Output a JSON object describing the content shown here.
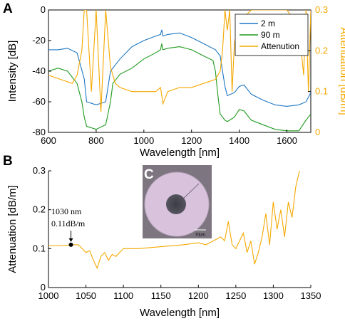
{
  "chart_data": [
    {
      "panel": "A",
      "type": "line",
      "xlabel": "Wavelength [nm]",
      "ylabel": "Intensity [dB]",
      "ylabel_right": "Attenuation [dB/m]",
      "xlim": [
        600,
        1700
      ],
      "ylim": [
        -80,
        0
      ],
      "ylim_right": [
        0,
        0.3
      ],
      "x_ticks": [
        "600",
        "800",
        "1000",
        "1200",
        "1400",
        "1600"
      ],
      "y_ticks": [
        "0",
        "-20",
        "-40",
        "-60",
        "-80"
      ],
      "y_ticks_right": [
        "0",
        "0.1",
        "0.2",
        "0.3"
      ],
      "legend_position": "top-right",
      "series": [
        {
          "name": "2 m",
          "color": "#1f77c4",
          "axis": "left",
          "x": [
            600,
            640,
            680,
            720,
            750,
            760,
            800,
            840,
            860,
            870,
            900,
            950,
            1000,
            1050,
            1070,
            1075,
            1080,
            1100,
            1150,
            1200,
            1250,
            1300,
            1320,
            1330,
            1340,
            1350,
            1380,
            1400,
            1420,
            1450,
            1500,
            1550,
            1600,
            1650,
            1680,
            1700
          ],
          "y": [
            -26,
            -26,
            -25,
            -28,
            -45,
            -60,
            -62,
            -60,
            -40,
            -38,
            -32,
            -24,
            -20,
            -17,
            -16,
            -13,
            -17,
            -16,
            -15,
            -18,
            -22,
            -26,
            -30,
            -40,
            -50,
            -56,
            -54,
            -50,
            -49,
            -55,
            -59,
            -62,
            -63,
            -62,
            -60,
            -54
          ]
        },
        {
          "name": "90 m",
          "color": "#1e9b1e",
          "axis": "left",
          "x": [
            600,
            640,
            680,
            720,
            740,
            750,
            760,
            800,
            840,
            860,
            870,
            900,
            950,
            1000,
            1050,
            1070,
            1075,
            1080,
            1100,
            1150,
            1200,
            1250,
            1290,
            1300,
            1310,
            1320,
            1340,
            1350,
            1380,
            1400,
            1420,
            1450,
            1500,
            1550,
            1600,
            1650,
            1680,
            1700
          ],
          "y": [
            -40,
            -38,
            -40,
            -48,
            -60,
            -70,
            -76,
            -78,
            -75,
            -60,
            -48,
            -42,
            -38,
            -32,
            -28,
            -26,
            -22,
            -26,
            -25,
            -24,
            -26,
            -30,
            -33,
            -40,
            -55,
            -68,
            -72,
            -73,
            -70,
            -65,
            -66,
            -72,
            -75,
            -78,
            -79,
            -79,
            -72,
            -68
          ]
        },
        {
          "name": "Attenution",
          "color": "#f5a800",
          "axis": "right",
          "x": [
            600,
            650,
            700,
            720,
            740,
            750,
            760,
            780,
            800,
            820,
            840,
            860,
            880,
            900,
            950,
            1000,
            1050,
            1070,
            1080,
            1100,
            1150,
            1200,
            1250,
            1300,
            1320,
            1330,
            1340,
            1350,
            1360,
            1370,
            1380,
            1400,
            1450,
            1500,
            1550,
            1600,
            1650,
            1670,
            1680,
            1690,
            1700
          ],
          "y": [
            0.14,
            0.13,
            0.12,
            0.14,
            0.2,
            0.3,
            0.3,
            0.1,
            0.3,
            0.05,
            0.3,
            0.16,
            0.12,
            0.11,
            0.1,
            0.1,
            0.1,
            0.11,
            0.07,
            0.1,
            0.11,
            0.11,
            0.12,
            0.13,
            0.15,
            0.2,
            0.3,
            0.25,
            0.3,
            0.1,
            0.22,
            0.27,
            0.3,
            0.3,
            0.3,
            0.3,
            0.26,
            0.14,
            0.3,
            0.1,
            0.3
          ]
        }
      ]
    },
    {
      "panel": "B",
      "type": "line",
      "xlabel": "Wavelength [nm]",
      "ylabel": "Attenuation [dB/m]",
      "xlim": [
        1000,
        1350
      ],
      "ylim": [
        0,
        0.3
      ],
      "x_ticks": [
        "1000",
        "1050",
        "1100",
        "1150",
        "1200",
        "1250",
        "1300",
        "1350"
      ],
      "y_ticks": [
        "0",
        "0.1",
        "0.2",
        "0.3"
      ],
      "series": [
        {
          "name": "",
          "color": "#f5a800",
          "x": [
            1000,
            1020,
            1030,
            1040,
            1045,
            1050,
            1055,
            1060,
            1065,
            1070,
            1075,
            1080,
            1085,
            1090,
            1100,
            1120,
            1150,
            1180,
            1200,
            1210,
            1220,
            1230,
            1235,
            1240,
            1245,
            1250,
            1255,
            1260,
            1265,
            1270,
            1275,
            1280,
            1285,
            1290,
            1295,
            1300,
            1305,
            1310,
            1315,
            1320,
            1325,
            1330,
            1335
          ],
          "y": [
            0.108,
            0.108,
            0.11,
            0.11,
            0.1,
            0.09,
            0.095,
            0.07,
            0.05,
            0.08,
            0.09,
            0.07,
            0.085,
            0.08,
            0.1,
            0.1,
            0.105,
            0.11,
            0.115,
            0.11,
            0.12,
            0.13,
            0.12,
            0.17,
            0.11,
            0.1,
            0.12,
            0.14,
            0.09,
            0.12,
            0.06,
            0.09,
            0.13,
            0.19,
            0.11,
            0.22,
            0.15,
            0.2,
            0.13,
            0.22,
            0.18,
            0.26,
            0.3
          ]
        }
      ],
      "annotation": {
        "x": 1030,
        "y": 0.11,
        "label_line1": "1030 nm",
        "label_line2": "0.11dB/m"
      },
      "inset": {
        "label": "C",
        "scale_bar": "10μm"
      }
    }
  ],
  "panel_labels": {
    "a": "A",
    "b": "B",
    "c": "C"
  }
}
